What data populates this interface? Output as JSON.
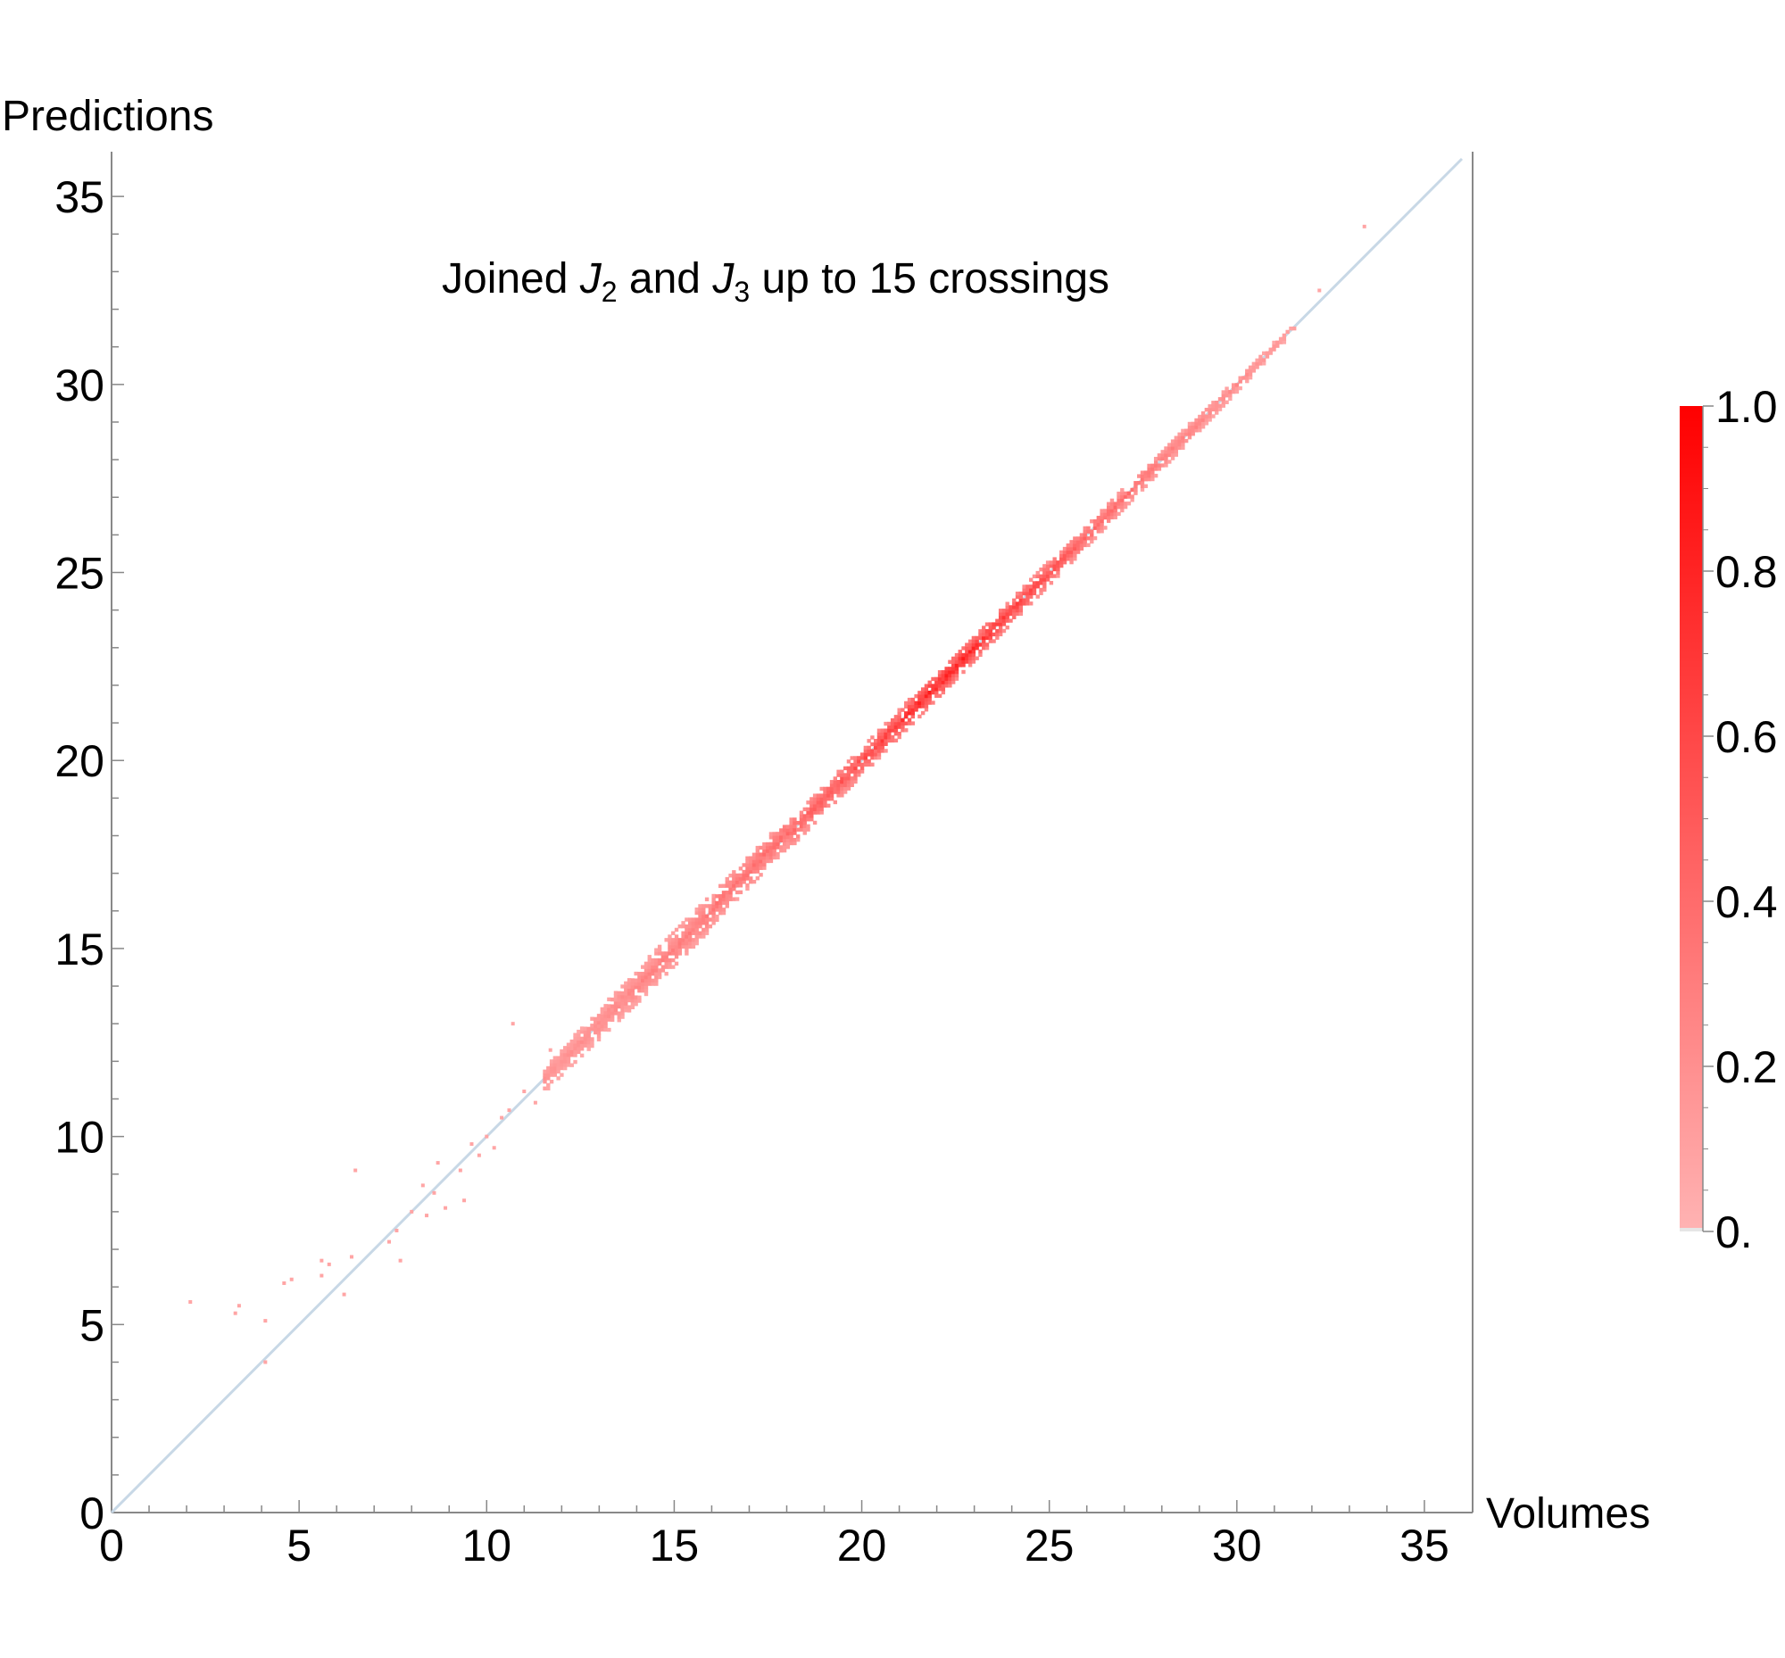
{
  "chart_data": {
    "type": "heatmap",
    "title": "Joined J2 and J3 up to 15 crossings",
    "title_parts": {
      "prefix": "Joined ",
      "var1": "J",
      "sub1": "2",
      "mid": " and ",
      "var2": "J",
      "sub2": "3",
      "suffix": " up to 15 crossings"
    },
    "xlabel": "Volumes",
    "ylabel": "Predictions",
    "xlim": [
      0,
      36
    ],
    "ylim": [
      0,
      36
    ],
    "x_ticks": [
      "0",
      "5",
      "10",
      "15",
      "20",
      "25",
      "30",
      "35"
    ],
    "y_ticks": [
      "0",
      "5",
      "10",
      "15",
      "20",
      "25",
      "30",
      "35"
    ],
    "reference_line": {
      "from": [
        0,
        0
      ],
      "to": [
        36,
        36
      ],
      "color": "#c8d8e6"
    },
    "colorbar": {
      "min_label": "0.",
      "labels": [
        "0.",
        "0.2",
        "0.4",
        "0.6",
        "0.8",
        "1.0"
      ],
      "values": [
        0,
        0.2,
        0.4,
        0.6,
        0.8,
        1.0
      ],
      "color_low": "#ffb3b3",
      "color_high": "#ff0000"
    },
    "band": {
      "description_points": [
        {
          "x": 12.0,
          "half_width": 0.35,
          "density": 0.18
        },
        {
          "x": 14.0,
          "half_width": 0.45,
          "density": 0.25
        },
        {
          "x": 16.0,
          "half_width": 0.45,
          "density": 0.32
        },
        {
          "x": 18.0,
          "half_width": 0.4,
          "density": 0.4
        },
        {
          "x": 20.0,
          "half_width": 0.38,
          "density": 0.55
        },
        {
          "x": 22.0,
          "half_width": 0.35,
          "density": 0.8
        },
        {
          "x": 24.0,
          "half_width": 0.33,
          "density": 0.62
        },
        {
          "x": 26.0,
          "half_width": 0.3,
          "density": 0.42
        },
        {
          "x": 28.0,
          "half_width": 0.25,
          "density": 0.3
        },
        {
          "x": 30.0,
          "half_width": 0.18,
          "density": 0.22
        },
        {
          "x": 31.3,
          "half_width": 0.12,
          "density": 0.15
        }
      ],
      "x_start": 11.5,
      "x_end": 31.5
    },
    "outliers": [
      {
        "x": 2.1,
        "y": 5.6
      },
      {
        "x": 3.4,
        "y": 5.5
      },
      {
        "x": 3.3,
        "y": 5.3
      },
      {
        "x": 4.1,
        "y": 5.1
      },
      {
        "x": 4.1,
        "y": 4.0
      },
      {
        "x": 4.8,
        "y": 6.2
      },
      {
        "x": 4.6,
        "y": 6.1
      },
      {
        "x": 5.6,
        "y": 6.7
      },
      {
        "x": 5.6,
        "y": 6.3
      },
      {
        "x": 5.8,
        "y": 6.6
      },
      {
        "x": 6.2,
        "y": 5.8
      },
      {
        "x": 6.4,
        "y": 6.8
      },
      {
        "x": 6.5,
        "y": 9.1
      },
      {
        "x": 7.4,
        "y": 7.2
      },
      {
        "x": 7.6,
        "y": 7.5
      },
      {
        "x": 7.7,
        "y": 6.7
      },
      {
        "x": 8.0,
        "y": 8.0
      },
      {
        "x": 8.3,
        "y": 8.7
      },
      {
        "x": 8.4,
        "y": 7.9
      },
      {
        "x": 8.6,
        "y": 8.5
      },
      {
        "x": 8.7,
        "y": 9.3
      },
      {
        "x": 8.9,
        "y": 8.1
      },
      {
        "x": 9.3,
        "y": 9.1
      },
      {
        "x": 9.4,
        "y": 8.3
      },
      {
        "x": 9.6,
        "y": 9.8
      },
      {
        "x": 9.8,
        "y": 9.5
      },
      {
        "x": 10.0,
        "y": 10.0
      },
      {
        "x": 10.2,
        "y": 9.7
      },
      {
        "x": 10.4,
        "y": 10.5
      },
      {
        "x": 10.6,
        "y": 10.7
      },
      {
        "x": 10.7,
        "y": 13.0
      },
      {
        "x": 11.0,
        "y": 11.2
      },
      {
        "x": 11.3,
        "y": 10.9
      },
      {
        "x": 11.7,
        "y": 12.3
      },
      {
        "x": 32.2,
        "y": 32.5
      },
      {
        "x": 33.4,
        "y": 34.2
      }
    ]
  }
}
